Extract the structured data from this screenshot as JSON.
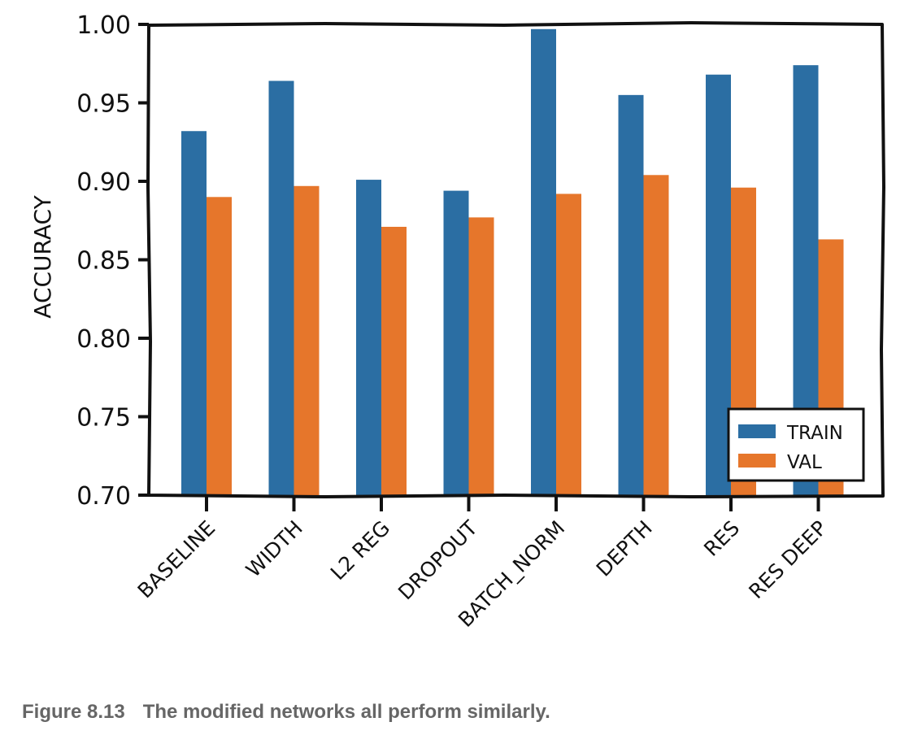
{
  "chart_data": {
    "type": "bar",
    "categories": [
      "BASELINE",
      "WIDTH",
      "L2 REG",
      "DROPOUT",
      "BATCH_NORM",
      "DEPTH",
      "RES",
      "RES DEEP"
    ],
    "series": [
      {
        "name": "TRAIN",
        "color": "#2b6ea3",
        "values": [
          0.932,
          0.964,
          0.901,
          0.894,
          0.997,
          0.955,
          0.968,
          0.974
        ]
      },
      {
        "name": "VAL",
        "color": "#e6762b",
        "values": [
          0.89,
          0.897,
          0.871,
          0.877,
          0.892,
          0.904,
          0.896,
          0.863
        ]
      }
    ],
    "ylabel": "ACCURACY",
    "ylim": [
      0.7,
      1.0
    ],
    "yticks": [
      "0.70",
      "0.75",
      "0.80",
      "0.85",
      "0.90",
      "0.95",
      "1.00"
    ],
    "legend_position": "lower-right",
    "grid": false
  },
  "caption": {
    "number": "Figure 8.13",
    "text": "The modified networks all perform similarly."
  }
}
